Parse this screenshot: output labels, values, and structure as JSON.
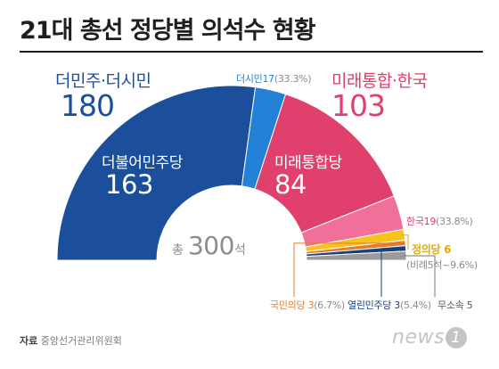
{
  "header": {
    "title": "21대 총선 정당별 의석수 현황"
  },
  "blocs": {
    "left": {
      "name": "더민주·더시민",
      "seats": "180",
      "color": "#1b4f9c"
    },
    "right": {
      "name": "미래통합·한국",
      "seats": "103",
      "color": "#e0406c"
    }
  },
  "labels": {
    "dersimin": {
      "name": "더시민17",
      "pct": "(33.3%)"
    },
    "hanguk": {
      "name": "한국19",
      "pct": "(33.8%)"
    },
    "justice": {
      "name": "정의당 6"
    },
    "justice_sub": "(비례5석~9.6%)",
    "kukmin": {
      "name": "국민의당 3",
      "pct": "(6.7%)"
    },
    "yeollin": {
      "name": "열린민주당 3",
      "pct": "(5.4%)"
    },
    "independent": "무소속 5"
  },
  "segments": {
    "dem": {
      "name": "더불어민주당",
      "seats": "163"
    },
    "uni": {
      "name": "미래통합당",
      "seats": "84"
    }
  },
  "total": {
    "prefix": "총",
    "value": "300",
    "suffix": "석"
  },
  "footer": {
    "source_label": "자료",
    "source": "중앙선거관리위원회",
    "logo": "news",
    "logo_badge": "1"
  },
  "chart_data": {
    "type": "pie",
    "title": "21대 총선 정당별 의석수 현황",
    "total": 300,
    "series": [
      {
        "name": "더불어민주당",
        "value": 163,
        "color": "#1b4f9c"
      },
      {
        "name": "더시민",
        "value": 17,
        "color": "#2481d8"
      },
      {
        "name": "미래통합당",
        "value": 84,
        "color": "#e0406c"
      },
      {
        "name": "한국",
        "value": 19,
        "color": "#f0709a"
      },
      {
        "name": "정의당",
        "value": 6,
        "color": "#f7c21c"
      },
      {
        "name": "국민의당",
        "value": 3,
        "color": "#e07e2c"
      },
      {
        "name": "열린민주당",
        "value": 3,
        "color": "#1d3f7a"
      },
      {
        "name": "무소속",
        "value": 5,
        "color": "#9b9b9b"
      }
    ]
  }
}
